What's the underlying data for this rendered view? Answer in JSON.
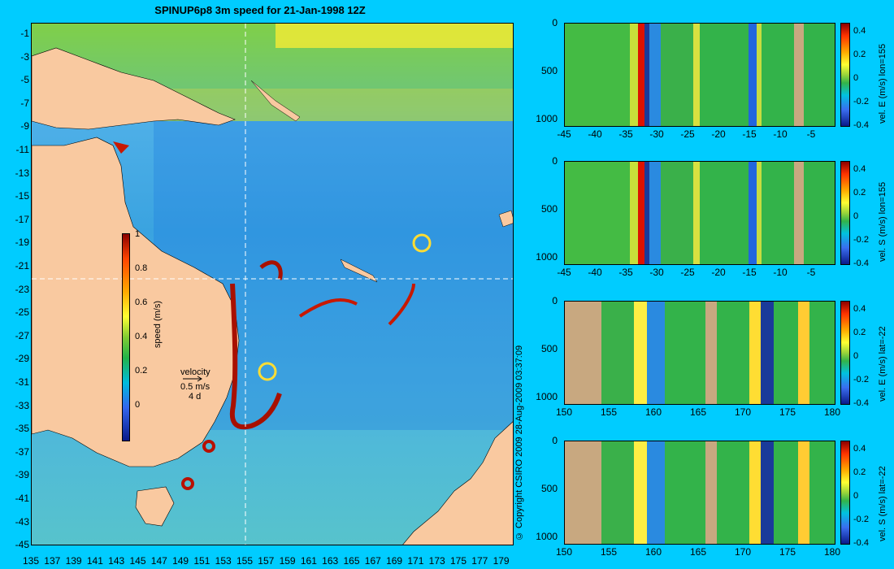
{
  "title": "SPINUP6p8 3m speed for 21-Jan-1998 12Z",
  "map": {
    "lat_ticks": [
      "-1",
      "-3",
      "-5",
      "-7",
      "-9",
      "-11",
      "-13",
      "-15",
      "-17",
      "-19",
      "-21",
      "-23",
      "-25",
      "-27",
      "-29",
      "-31",
      "-33",
      "-35",
      "-37",
      "-39",
      "-41",
      "-43",
      "-45"
    ],
    "lon_ticks": [
      "135",
      "137",
      "139",
      "141",
      "143",
      "145",
      "147",
      "149",
      "151",
      "153",
      "155",
      "157",
      "159",
      "161",
      "163",
      "165",
      "167",
      "169",
      "171",
      "173",
      "175",
      "177",
      "179"
    ],
    "speed_colorbar": {
      "labels": [
        "1",
        "0.8",
        "0.6",
        "0.4",
        "0.2",
        "0"
      ],
      "title": "speed (m/s)"
    },
    "velocity_legend": {
      "title": "velocity",
      "speed": "0.5 m/s",
      "time": "4 d"
    },
    "colors": {
      "land": "#f9c9a0",
      "sea_low": "#3a8fe8",
      "sea_mid": "#33b34a",
      "sea_high": "#ffdd33",
      "jet": "#a81000"
    }
  },
  "copyright": "© Copyright CSIRO 2009   28-Aug-2009 03:37:09",
  "panels": [
    {
      "label": "vel. E (m/s) lon=155",
      "x_ticks": [
        "-45",
        "-40",
        "-35",
        "-30",
        "-25",
        "-20",
        "-15",
        "-10",
        "-5"
      ],
      "y_ticks": [
        "0",
        "500",
        "1000"
      ],
      "cbar_labels": [
        "0.4",
        "0.2",
        "0",
        "-0.2",
        "-0.4"
      ]
    },
    {
      "label": "vel. S (m/s) lon=155",
      "x_ticks": [
        "-45",
        "-40",
        "-35",
        "-30",
        "-25",
        "-20",
        "-15",
        "-10",
        "-5"
      ],
      "y_ticks": [
        "0",
        "500",
        "1000"
      ],
      "cbar_labels": [
        "0.4",
        "0.2",
        "0",
        "-0.2",
        "-0.4"
      ]
    },
    {
      "label": "vel. E (m/s) lat=-22",
      "x_ticks": [
        "150",
        "155",
        "160",
        "165",
        "170",
        "175",
        "180"
      ],
      "y_ticks": [
        "0",
        "500",
        "1000"
      ],
      "cbar_labels": [
        "0.4",
        "0.2",
        "0",
        "-0.2",
        "-0.4"
      ]
    },
    {
      "label": "vel. S (m/s) lat=-22",
      "x_ticks": [
        "150",
        "155",
        "160",
        "165",
        "170",
        "175",
        "180"
      ],
      "y_ticks": [
        "0",
        "500",
        "1000"
      ],
      "cbar_labels": [
        "0.4",
        "0.2",
        "0",
        "-0.2",
        "-0.4"
      ]
    }
  ]
}
